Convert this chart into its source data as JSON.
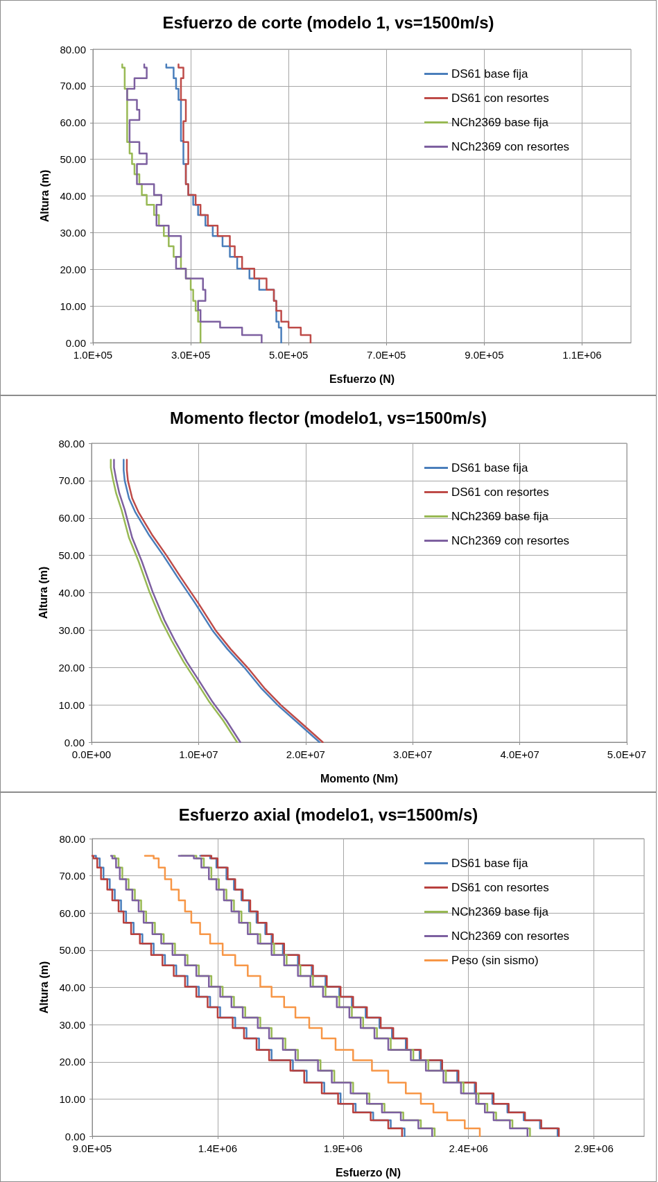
{
  "chart_data": [
    {
      "type": "step",
      "title": "Esfuerzo de corte (modelo 1, vs=1500m/s)",
      "xlabel": "Esfuerzo (N)",
      "ylabel": "Altura (m)",
      "xlim": [
        100000,
        1200000
      ],
      "xticks": [
        {
          "value": 100000,
          "label": "1.0E+05"
        },
        {
          "value": 300000,
          "label": "3.0E+05"
        },
        {
          "value": 500000,
          "label": "5.0E+05"
        },
        {
          "value": 700000,
          "label": "7.0E+05"
        },
        {
          "value": 900000,
          "label": "9.0E+05"
        },
        {
          "value": 1100000,
          "label": "1.1E+06"
        }
      ],
      "ylim": [
        0,
        80
      ],
      "yticks": [
        {
          "value": 0,
          "label": "0.00"
        },
        {
          "value": 10,
          "label": "10.00"
        },
        {
          "value": 20,
          "label": "20.00"
        },
        {
          "value": 30,
          "label": "30.00"
        },
        {
          "value": 40,
          "label": "40.00"
        },
        {
          "value": 50,
          "label": "50.00"
        },
        {
          "value": 60,
          "label": "60.00"
        },
        {
          "value": 70,
          "label": "70.00"
        },
        {
          "value": 80,
          "label": "80.00"
        }
      ],
      "grid": true,
      "legend": "top right",
      "marker": "none",
      "line_style": "solid",
      "series": [
        {
          "name": "DS61 base fija",
          "color": "#4a7ebb",
          "x": [
            485000,
            480000,
            475000,
            470000,
            440000,
            420000,
            395000,
            380000,
            365000,
            345000,
            330000,
            315000,
            305000,
            295000,
            290000,
            285000,
            280000,
            275000,
            270000,
            265000,
            250000,
            250000
          ],
          "values": [
            0,
            4.1,
            5.7,
            11.4,
            14.4,
            17.5,
            20.2,
            23.4,
            26.3,
            29.1,
            31.9,
            34.8,
            37.6,
            40.3,
            43.2,
            48.7,
            55.0,
            66.2,
            69.2,
            72.1,
            75.0,
            75.9
          ]
        },
        {
          "name": "DS61 con resortes",
          "color": "#be4b48",
          "x": [
            545000,
            525000,
            500000,
            485000,
            475000,
            470000,
            455000,
            430000,
            405000,
            390000,
            380000,
            355000,
            335000,
            320000,
            310000,
            295000,
            290000,
            295000,
            285000,
            290000,
            280000,
            285000,
            275000,
            275000
          ],
          "values": [
            0,
            2.1,
            4.1,
            5.7,
            8.7,
            11.4,
            14.4,
            17.5,
            20.2,
            23.4,
            26.3,
            29.1,
            31.9,
            34.8,
            37.6,
            40.3,
            43.2,
            48.7,
            54.7,
            60.4,
            66.2,
            72.1,
            75.0,
            75.9
          ]
        },
        {
          "name": "NCh2369 base fija",
          "color": "#98b954",
          "x": [
            320000,
            315000,
            310000,
            305000,
            300000,
            290000,
            280000,
            265000,
            255000,
            245000,
            235000,
            225000,
            210000,
            200000,
            195000,
            185000,
            180000,
            175000,
            170000,
            165000,
            160000,
            160000
          ],
          "values": [
            0,
            5.7,
            8.7,
            11.4,
            14.4,
            17.5,
            20.2,
            23.4,
            26.3,
            29.1,
            31.9,
            34.8,
            37.6,
            40.3,
            43.2,
            45.9,
            48.7,
            51.6,
            54.7,
            69.2,
            75.0,
            75.9
          ]
        },
        {
          "name": "NCh2369 con resortes",
          "color": "#7d60a0",
          "x": [
            445000,
            405000,
            360000,
            320000,
            315000,
            330000,
            325000,
            290000,
            270000,
            280000,
            255000,
            230000,
            240000,
            225000,
            190000,
            210000,
            195000,
            175000,
            195000,
            190000,
            170000,
            185000,
            210000,
            205000,
            205000
          ],
          "values": [
            0,
            2.1,
            4.1,
            5.7,
            8.9,
            11.4,
            14.4,
            17.5,
            20.2,
            23.4,
            29.1,
            31.9,
            37.6,
            40.3,
            43.2,
            48.7,
            51.6,
            54.7,
            60.7,
            63.5,
            66.2,
            69.2,
            72.1,
            75.0,
            75.9
          ]
        }
      ]
    },
    {
      "type": "line",
      "title": "Momento flector (modelo1, vs=1500m/s)",
      "xlabel": "Momento (Nm)",
      "ylabel": "Altura (m)",
      "xlim": [
        0,
        50000000
      ],
      "xticks": [
        {
          "value": 0,
          "label": "0.0E+00"
        },
        {
          "value": 10000000,
          "label": "1.0E+07"
        },
        {
          "value": 20000000,
          "label": "2.0E+07"
        },
        {
          "value": 30000000,
          "label": "3.0E+07"
        },
        {
          "value": 40000000,
          "label": "4.0E+07"
        },
        {
          "value": 50000000,
          "label": "5.0E+07"
        }
      ],
      "ylim": [
        0,
        80
      ],
      "yticks": [
        {
          "value": 0,
          "label": "0.00"
        },
        {
          "value": 10,
          "label": "10.00"
        },
        {
          "value": 20,
          "label": "20.00"
        },
        {
          "value": 30,
          "label": "30.00"
        },
        {
          "value": 40,
          "label": "40.00"
        },
        {
          "value": 50,
          "label": "50.00"
        },
        {
          "value": 60,
          "label": "60.00"
        },
        {
          "value": 70,
          "label": "70.00"
        },
        {
          "value": 80,
          "label": "80.00"
        }
      ],
      "grid": true,
      "legend": "top right",
      "marker": "none",
      "line_style": "solid",
      "series": [
        {
          "name": "DS61 base fija",
          "color": "#4a7ebb",
          "x": [
            21300000,
            19500000,
            17400000,
            15900000,
            14300000,
            12700000,
            11300000,
            9700000,
            8000000,
            6700000,
            5400000,
            4100000,
            3500000,
            3100000,
            3000000,
            3000000
          ],
          "values": [
            0,
            4.6,
            9.9,
            14.3,
            19.9,
            24.9,
            29.9,
            37.1,
            44.3,
            50.0,
            55.3,
            61.5,
            65.3,
            70.0,
            72.8,
            75.6
          ]
        },
        {
          "name": "DS61 con resortes",
          "color": "#be4b48",
          "x": [
            21600000,
            19800000,
            17700000,
            16200000,
            14600000,
            13000000,
            11600000,
            10000000,
            8300000,
            7000000,
            5700000,
            4400000,
            3800000,
            3400000,
            3300000,
            3300000
          ],
          "values": [
            0,
            4.6,
            9.9,
            14.3,
            19.9,
            24.9,
            29.9,
            37.1,
            44.3,
            50.0,
            55.3,
            61.5,
            65.3,
            70.0,
            72.8,
            75.6
          ]
        },
        {
          "name": "NCh2369 base fija",
          "color": "#98b954",
          "x": [
            13600000,
            12300000,
            11000000,
            9600000,
            8600000,
            7500000,
            6500000,
            5400000,
            4400000,
            3500000,
            2800000,
            2300000,
            2000000,
            1800000,
            1800000
          ],
          "values": [
            0,
            5.8,
            10.8,
            17.1,
            21.5,
            27.1,
            32.7,
            40.3,
            48.4,
            54.7,
            62.2,
            66.6,
            70.4,
            73.5,
            75.6
          ]
        },
        {
          "name": "NCh2369 con resortes",
          "color": "#7d60a0",
          "x": [
            13900000,
            12600000,
            11300000,
            9900000,
            8900000,
            7800000,
            6800000,
            5700000,
            4700000,
            3800000,
            3100000,
            2600000,
            2300000,
            2100000,
            2100000
          ],
          "values": [
            0,
            5.8,
            10.8,
            17.1,
            21.5,
            27.1,
            32.7,
            40.3,
            48.4,
            54.7,
            62.2,
            66.6,
            70.4,
            73.5,
            75.6
          ]
        }
      ]
    },
    {
      "type": "step",
      "title": "Esfuerzo axial (modelo1, vs=1500m/s)",
      "xlabel": "Esfuerzo (N)",
      "ylabel": "Altura (m)",
      "xlim": [
        900000,
        3100000
      ],
      "xticks": [
        {
          "value": 900000,
          "label": "9.0E+05"
        },
        {
          "value": 1400000,
          "label": "1.4E+06"
        },
        {
          "value": 1900000,
          "label": "1.9E+06"
        },
        {
          "value": 2400000,
          "label": "2.4E+06"
        },
        {
          "value": 2900000,
          "label": "2.9E+06"
        }
      ],
      "ylim": [
        0,
        80
      ],
      "yticks": [
        {
          "value": 0,
          "label": "0.00"
        },
        {
          "value": 10,
          "label": "10.00"
        },
        {
          "value": 20,
          "label": "20.00"
        },
        {
          "value": 30,
          "label": "30.00"
        },
        {
          "value": 40,
          "label": "40.00"
        },
        {
          "value": 50,
          "label": "50.00"
        },
        {
          "value": 60,
          "label": "60.00"
        },
        {
          "value": 70,
          "label": "70.00"
        },
        {
          "value": 80,
          "label": "80.00"
        }
      ],
      "grid": true,
      "legend": "top right",
      "marker": "none",
      "line_style": "solid",
      "series": [
        {
          "name": "DS61 base fija",
          "color": "#4a7ebb",
          "x": [
            2145000,
            2090000,
            2020000,
            1950000,
            1890000,
            1825000,
            1755000,
            1700000,
            1615000,
            1565000,
            1515000,
            1470000,
            1410000,
            1370000,
            1325000,
            1280000,
            1235000,
            1190000,
            1145000,
            1100000,
            1065000,
            1035000,
            1015000,
            990000,
            970000,
            945000,
            930000,
            915000,
            910000,
            null,
            2755000,
            2685000,
            2620000,
            2555000,
            2495000,
            2425000,
            2355000,
            2290000,
            2205000,
            2150000,
            2095000,
            2045000,
            1990000,
            1935000,
            1885000,
            1830000,
            1775000,
            1720000,
            1660000,
            1615000,
            1590000,
            1555000,
            1525000,
            1495000,
            1465000,
            1435000,
            1395000,
            1370000,
            1330000
          ],
          "values": [
            0,
            2.1,
            4.3,
            6.4,
            8.7,
            11.5,
            14.4,
            17.6,
            20.4,
            23.2,
            26.3,
            29.1,
            31.9,
            34.7,
            37.5,
            40.2,
            43.1,
            45.9,
            48.7,
            51.8,
            54.3,
            57.4,
            60.4,
            63.4,
            66.3,
            69.1,
            72.2,
            74.7,
            75.4,
            null,
            0,
            2.1,
            4.3,
            6.4,
            8.7,
            11.5,
            14.4,
            17.6,
            20.4,
            23.2,
            26.3,
            29.1,
            31.9,
            34.7,
            37.5,
            40.2,
            43.1,
            45.9,
            48.7,
            51.8,
            54.3,
            57.4,
            60.4,
            63.4,
            66.3,
            69.1,
            72.2,
            74.7,
            75.4
          ]
        },
        {
          "name": "DS61 con resortes",
          "color": "#b8403d",
          "x": [
            2135000,
            2080000,
            2010000,
            1940000,
            1880000,
            1815000,
            1745000,
            1690000,
            1605000,
            1555000,
            1505000,
            1460000,
            1400000,
            1360000,
            1315000,
            1270000,
            1225000,
            1180000,
            1135000,
            1090000,
            1055000,
            1025000,
            1005000,
            980000,
            960000,
            935000,
            920000,
            905000,
            900000,
            null,
            2760000,
            2690000,
            2625000,
            2560000,
            2500000,
            2430000,
            2360000,
            2295000,
            2210000,
            2155000,
            2100000,
            2050000,
            1995000,
            1940000,
            1890000,
            1835000,
            1780000,
            1725000,
            1665000,
            1620000,
            1595000,
            1560000,
            1530000,
            1500000,
            1470000,
            1440000,
            1400000,
            1375000,
            1335000
          ],
          "values": [
            0,
            2.1,
            4.3,
            6.4,
            8.7,
            11.5,
            14.4,
            17.6,
            20.4,
            23.2,
            26.3,
            29.1,
            31.9,
            34.7,
            37.5,
            40.2,
            43.1,
            45.9,
            48.7,
            51.8,
            54.3,
            57.4,
            60.4,
            63.4,
            66.3,
            69.1,
            72.2,
            74.7,
            75.4,
            null,
            0,
            2.1,
            4.3,
            6.4,
            8.7,
            11.5,
            14.4,
            17.6,
            20.4,
            23.2,
            26.3,
            29.1,
            31.9,
            34.7,
            37.5,
            40.2,
            43.1,
            45.9,
            48.7,
            51.8,
            54.3,
            57.4,
            60.4,
            63.4,
            66.3,
            69.1,
            72.2,
            74.7,
            75.4
          ]
        },
        {
          "name": "NCh2369 base fija",
          "color": "#98b954",
          "x": [
            2265000,
            2210000,
            2140000,
            2065000,
            2005000,
            1940000,
            1865000,
            1810000,
            1720000,
            1670000,
            1615000,
            1570000,
            1510000,
            1465000,
            1420000,
            1375000,
            1325000,
            1280000,
            1230000,
            1185000,
            1150000,
            1115000,
            1095000,
            1070000,
            1045000,
            1020000,
            1005000,
            990000,
            985000,
            null,
            2645000,
            2575000,
            2510000,
            2475000,
            2440000,
            2380000,
            2310000,
            2240000,
            2180000,
            2090000,
            2035000,
            1980000,
            1935000,
            1885000,
            1830000,
            1780000,
            1730000,
            1675000,
            1625000,
            1570000,
            1530000,
            1495000,
            1465000,
            1435000,
            1405000,
            1375000,
            1345000,
            1315000,
            1255000
          ],
          "values": [
            0,
            2.1,
            4.3,
            6.4,
            8.7,
            11.5,
            14.4,
            17.6,
            20.4,
            23.2,
            26.3,
            29.1,
            31.9,
            34.7,
            37.5,
            40.2,
            43.1,
            45.9,
            48.7,
            51.8,
            54.3,
            57.4,
            60.4,
            63.4,
            66.3,
            69.1,
            72.2,
            74.7,
            75.4,
            null,
            0,
            2.1,
            4.3,
            6.4,
            8.7,
            11.5,
            14.4,
            17.6,
            20.4,
            23.2,
            26.3,
            29.1,
            31.9,
            34.7,
            37.5,
            40.2,
            43.1,
            45.9,
            48.7,
            51.8,
            54.3,
            57.4,
            60.4,
            63.4,
            66.3,
            69.1,
            72.2,
            74.7,
            75.4
          ]
        },
        {
          "name": "NCh2369 con resortes",
          "color": "#7d60a0",
          "x": [
            2255000,
            2200000,
            2130000,
            2055000,
            1995000,
            1930000,
            1855000,
            1800000,
            1710000,
            1660000,
            1605000,
            1560000,
            1500000,
            1455000,
            1410000,
            1365000,
            1315000,
            1270000,
            1220000,
            1175000,
            1140000,
            1105000,
            1085000,
            1060000,
            1035000,
            1010000,
            995000,
            980000,
            975000,
            null,
            2635000,
            2565000,
            2500000,
            2465000,
            2430000,
            2370000,
            2300000,
            2230000,
            2170000,
            2080000,
            2025000,
            1970000,
            1925000,
            1875000,
            1820000,
            1770000,
            1720000,
            1665000,
            1615000,
            1560000,
            1520000,
            1485000,
            1455000,
            1425000,
            1395000,
            1365000,
            1335000,
            1305000,
            1245000
          ],
          "values": [
            0,
            2.1,
            4.3,
            6.4,
            8.7,
            11.5,
            14.4,
            17.6,
            20.4,
            23.2,
            26.3,
            29.1,
            31.9,
            34.7,
            37.5,
            40.2,
            43.1,
            45.9,
            48.7,
            51.8,
            54.3,
            57.4,
            60.4,
            63.4,
            66.3,
            69.1,
            72.2,
            74.7,
            75.4,
            null,
            0,
            2.1,
            4.3,
            6.4,
            8.7,
            11.5,
            14.4,
            17.6,
            20.4,
            23.2,
            26.3,
            29.1,
            31.9,
            34.7,
            37.5,
            40.2,
            43.1,
            45.9,
            48.7,
            51.8,
            54.3,
            57.4,
            60.4,
            63.4,
            66.3,
            69.1,
            72.2,
            74.7,
            75.4
          ]
        },
        {
          "name": "Peso (sin sismo)",
          "color": "#f79646",
          "x": [
            2445000,
            2385000,
            2315000,
            2260000,
            2210000,
            2150000,
            2080000,
            2015000,
            1940000,
            1870000,
            1815000,
            1765000,
            1710000,
            1665000,
            1615000,
            1570000,
            1520000,
            1470000,
            1420000,
            1370000,
            1330000,
            1295000,
            1270000,
            1245000,
            1215000,
            1190000,
            1165000,
            1145000,
            1110000
          ],
          "values": [
            0,
            2.1,
            4.3,
            6.4,
            8.7,
            11.5,
            14.4,
            17.6,
            20.4,
            23.2,
            26.3,
            29.1,
            31.9,
            34.7,
            37.5,
            40.2,
            43.1,
            45.9,
            48.7,
            51.8,
            54.3,
            57.4,
            60.4,
            63.4,
            66.3,
            69.1,
            72.2,
            74.7,
            75.4
          ]
        }
      ]
    }
  ]
}
